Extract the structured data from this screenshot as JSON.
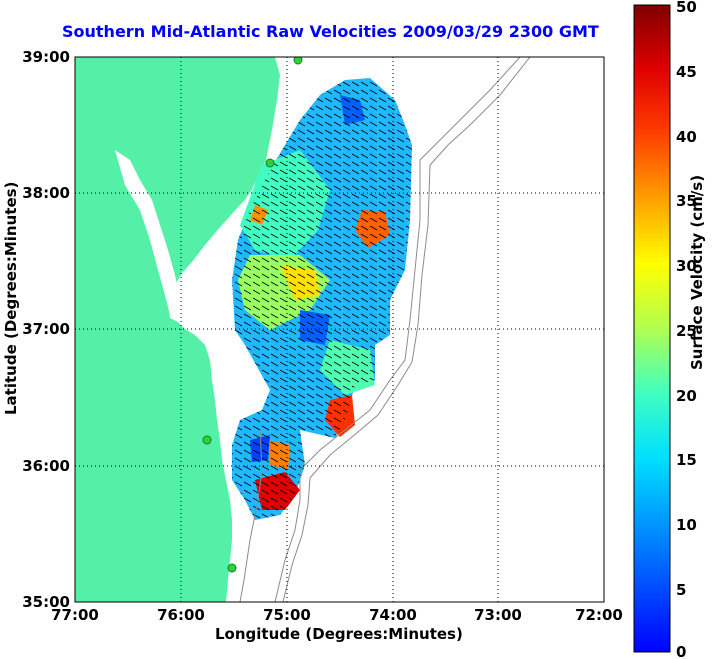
{
  "title": "Southern Mid-Atlantic Raw Velocities 2009/03/29 2300 GMT",
  "x_axis": {
    "label": "Longitude (Degrees:Minutes)",
    "ticks": [
      "77:00",
      "76:00",
      "75:00",
      "74:00",
      "73:00",
      "72:00"
    ]
  },
  "y_axis": {
    "label": "Latitude (Degrees:Minutes)",
    "ticks": [
      "39:00",
      "38:00",
      "37:00",
      "36:00",
      "35:00"
    ]
  },
  "colorbar": {
    "label": "Surface Velocity (cm/s)",
    "min": 0,
    "max": 50,
    "ticks": [
      "50",
      "45",
      "40",
      "35",
      "30",
      "25",
      "20",
      "15",
      "10",
      "5",
      "0"
    ],
    "colormap": "jet"
  },
  "colors": {
    "land": "#55f0a8",
    "title": "#0000ff",
    "bathymetry": "#8c8c8c",
    "station": "#2fd13a"
  },
  "map": {
    "lon_range": [
      -77,
      -72
    ],
    "lat_range": [
      35,
      39
    ],
    "grid": "dotted",
    "stations": [
      {
        "lon": -75.1,
        "lat": 38.98
      },
      {
        "lon": -75.88,
        "lat": 38.22
      },
      {
        "lon": -75.8,
        "lat": 36.19
      },
      {
        "lon": -75.52,
        "lat": 35.25
      }
    ]
  }
}
